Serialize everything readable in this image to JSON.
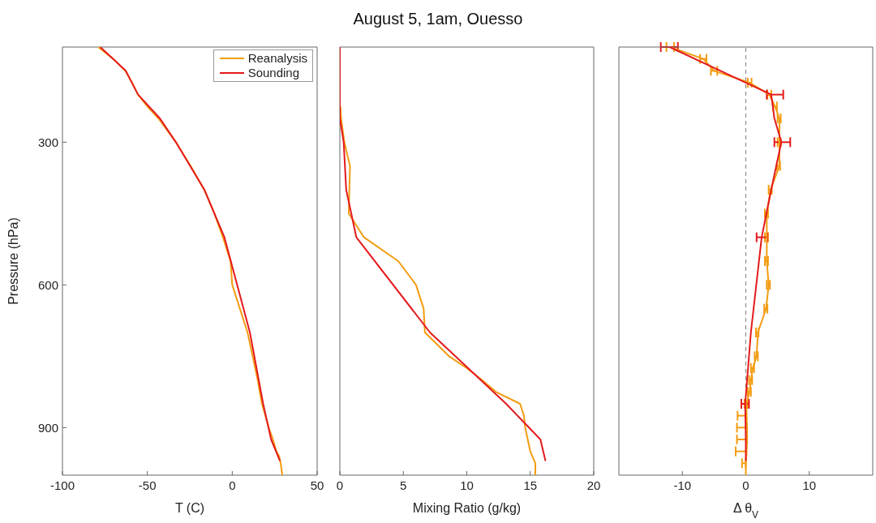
{
  "chart_data": [
    {
      "type": "line",
      "xlabel": "T (C)",
      "ylabel": "Pressure (hPa)",
      "xlim": [
        -100,
        50
      ],
      "xticks": [
        -100,
        -50,
        0,
        50
      ],
      "ylim": [
        1000,
        100
      ],
      "yticks": [
        300,
        600,
        900
      ],
      "legend": "top right",
      "grid": false,
      "series": [
        {
          "name": "Reanalysis",
          "color": "#f39c12",
          "x": [
            -79,
            -70,
            -63,
            -59,
            -55.5,
            -50,
            -43.5,
            -33.2,
            -24.5,
            -16.5,
            -10.5,
            -5.5,
            -1,
            0,
            4.5,
            9,
            12,
            13.5,
            15,
            16.2,
            17.5,
            19.5,
            21.5,
            24,
            26,
            27.6,
            28.5,
            29.5
          ],
          "values": [
            100,
            125,
            150,
            175,
            200,
            225,
            250,
            300,
            350,
            400,
            450,
            500,
            550,
            600,
            650,
            700,
            750,
            775,
            800,
            825,
            850,
            875,
            900,
            925,
            950,
            960,
            975,
            1000
          ]
        },
        {
          "name": "Sounding",
          "color": "#e41a1c",
          "x": [
            -77.7,
            -62.7,
            -55.5,
            -42.6,
            -33.2,
            -16.4,
            -4.6,
            10.4,
            18.2,
            22.9,
            28.1
          ],
          "values": [
            100,
            150,
            200,
            250,
            300,
            400,
            500,
            700,
            850,
            925,
            970
          ]
        }
      ]
    },
    {
      "type": "line",
      "title": "August 5, 1am, Ouesso",
      "xlabel": "Mixing Ratio (g/kg)",
      "xlim": [
        0,
        20
      ],
      "xticks": [
        0,
        5,
        10,
        15,
        20
      ],
      "ylim": [
        1000,
        100
      ],
      "yticks": [
        300,
        600,
        900
      ],
      "tick_labels": "x",
      "grid": false,
      "series": [
        {
          "color": "#f39c12",
          "x": [
            0.05,
            0.1,
            0.35,
            0.8,
            0.75,
            0.7,
            1.9,
            4.6,
            6.0,
            6.6,
            6.7,
            8.6,
            10.0,
            11.2,
            12.3,
            14.2,
            14.5,
            14.6,
            15.0,
            15.4,
            15.4
          ],
          "values": [
            225,
            250,
            300,
            350,
            400,
            450,
            500,
            550,
            600,
            650,
            700,
            750,
            775,
            800,
            825,
            850,
            875,
            900,
            950,
            975,
            1000
          ]
        },
        {
          "color": "#e41a1c",
          "x": [
            0,
            0,
            0.3,
            0.5,
            1.3,
            7.1,
            13.1,
            15.8,
            16.2
          ],
          "values": [
            100,
            250,
            300,
            400,
            500,
            700,
            850,
            925,
            970
          ]
        }
      ]
    },
    {
      "type": "line",
      "xlabel": "Δ θ$_{V}$",
      "xlim": [
        -20,
        20
      ],
      "xticks": [
        -10,
        0,
        10
      ],
      "ylim": [
        1000,
        100
      ],
      "yticks": [
        300,
        600,
        900
      ],
      "tick_labels": "x",
      "grid": false,
      "ref_lines": [
        {
          "axis": "x",
          "value": 0,
          "color": "#808080",
          "line_style": "dashed"
        }
      ],
      "series": [
        {
          "color": "#f39c12",
          "x": [
            -11.9,
            -6.7,
            -5.0,
            0.6,
            3.7,
            4.6,
            5.3,
            5.3,
            5.3,
            3.9,
            3.3,
            3.3,
            3.3,
            3.6,
            3.2,
            1.9,
            1.7,
            1.1,
            0.8,
            0.6,
            0.1,
            0.1,
            0.2,
            0.2,
            0.1,
            0,
            0
          ],
          "values": [
            100,
            125,
            150,
            175,
            200,
            225,
            250,
            300,
            350,
            400,
            450,
            500,
            550,
            600,
            650,
            700,
            750,
            775,
            800,
            825,
            850,
            875,
            900,
            925,
            950,
            975,
            1000
          ],
          "xerrors": [
            [
              -12.5,
              -11.3
            ],
            [
              -7.2,
              -6.2
            ],
            [
              -5.5,
              -4.5
            ],
            [
              0.3,
              0.9
            ],
            [
              3.4,
              4.0
            ],
            [
              4.3,
              4.9
            ],
            [
              5.0,
              5.5
            ],
            [
              5.0,
              5.5
            ],
            [
              4.9,
              5.4
            ],
            [
              3.6,
              4.1
            ],
            [
              3.0,
              3.5
            ],
            [
              3.0,
              3.5
            ],
            [
              3.0,
              3.5
            ],
            [
              3.3,
              3.8
            ],
            [
              2.9,
              3.4
            ],
            [
              1.6,
              2.0
            ],
            [
              1.4,
              1.9
            ],
            [
              0.8,
              1.3
            ],
            [
              0.5,
              1.0
            ],
            [
              0.3,
              0.8
            ],
            [
              -0.2,
              0.3
            ],
            [
              -1.3,
              0.1
            ],
            [
              -1.4,
              0.2
            ],
            [
              -1.4,
              0.2
            ],
            [
              -1.6,
              0.1
            ],
            [
              -0.6,
              0
            ],
            null
          ]
        },
        {
          "color": "#e41a1c",
          "x": [
            -12.0,
            4.0,
            4.5,
            5.6,
            4.0,
            2.5,
            0.8,
            -0.1,
            0,
            0
          ],
          "values": [
            100,
            200,
            250,
            300,
            400,
            500,
            700,
            850,
            925,
            970
          ],
          "xerrors": [
            [
              -13.4,
              -10.7
            ],
            [
              3.3,
              5.9
            ],
            null,
            [
              4.5,
              7.0
            ],
            null,
            [
              1.7,
              3.4
            ],
            null,
            [
              -0.7,
              0.5
            ],
            null,
            null
          ]
        }
      ]
    }
  ]
}
